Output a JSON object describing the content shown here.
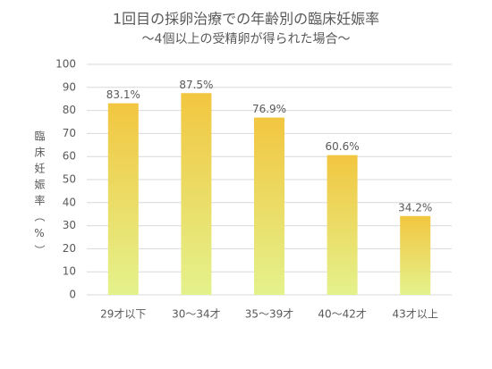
{
  "chart_data": {
    "type": "bar",
    "title": "1回目の採卵治療での年齢別の臨床妊娠率",
    "subtitle": "～4個以上の受精卵が得られた場合～",
    "y_label": "臨床妊娠率（%）",
    "categories": [
      "29才以下",
      "30～34才",
      "35～39才",
      "40～42才",
      "43才以上"
    ],
    "values": [
      83.1,
      87.5,
      76.9,
      60.6,
      34.2
    ],
    "value_labels": [
      "83.1%",
      "87.5%",
      "76.9%",
      "60.6%",
      "34.2%"
    ],
    "gradient": [
      "#f2c640",
      "#e4f28c"
    ],
    "ylim": [
      0,
      100
    ],
    "yticks": [
      0,
      10,
      20,
      30,
      40,
      50,
      60,
      70,
      80,
      90,
      100
    ],
    "grid": true
  }
}
